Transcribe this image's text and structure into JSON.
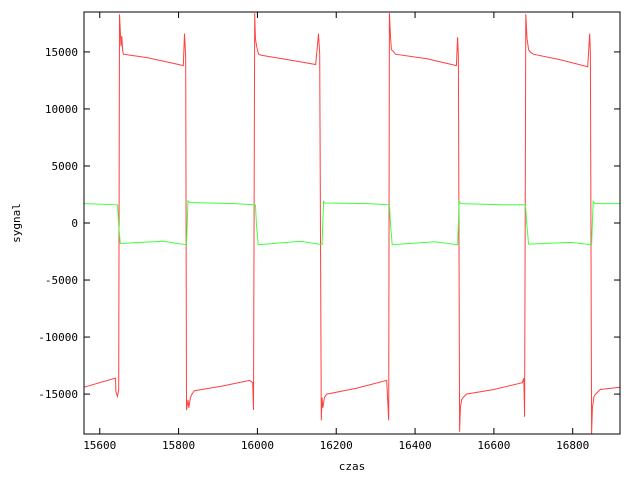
{
  "chart_data": {
    "type": "line",
    "title": "",
    "xlabel": "czas",
    "ylabel": "sygnal",
    "xlim": [
      15560,
      16920
    ],
    "ylim": [
      -18500,
      18500
    ],
    "x_ticks": [
      15600,
      15800,
      16000,
      16200,
      16400,
      16600,
      16800
    ],
    "y_ticks": [
      -15000,
      -10000,
      -5000,
      0,
      5000,
      10000,
      15000
    ],
    "x_tick_labels": [
      "15600",
      "15800",
      "16000",
      "16200",
      "16400",
      "16600",
      "16800"
    ],
    "y_tick_labels": [
      "-15000",
      "-10000",
      "-5000",
      "0",
      "5000",
      "10000",
      "15000"
    ],
    "grid": false,
    "legend": "none",
    "series": [
      {
        "color": "#ff4040",
        "x": [
          15560,
          15640,
          15641,
          15645,
          15648,
          15650,
          15654,
          15656,
          15658,
          15660,
          15720,
          15800,
          15812,
          15815,
          15818,
          15820,
          15824,
          15826,
          15830,
          15834,
          15840,
          15910,
          15980,
          15988,
          15990,
          15993,
          15995,
          15998,
          16000,
          16003,
          16010,
          16080,
          16148,
          16155,
          16158,
          16162,
          16164,
          16166,
          16170,
          16176,
          16250,
          16328,
          16333,
          16335,
          16338,
          16340,
          16346,
          16350,
          16430,
          16505,
          16508,
          16510,
          16513,
          16515,
          16518,
          16522,
          16530,
          16600,
          16672,
          16676,
          16678,
          16681,
          16684,
          16688,
          16692,
          16700,
          16770,
          16838,
          16843,
          16845,
          16848,
          16850,
          16854,
          16858,
          16870,
          16920
        ],
        "y": [
          -14400,
          -13600,
          -14800,
          -15200,
          -14600,
          18300,
          15500,
          16400,
          15200,
          14800,
          14500,
          13900,
          13800,
          16600,
          14500,
          -16400,
          -15500,
          -16200,
          -15300,
          -15000,
          -14700,
          -14300,
          -13800,
          -14000,
          -16400,
          18400,
          16200,
          15500,
          15200,
          14800,
          14700,
          14300,
          13900,
          16600,
          14800,
          -17300,
          -15300,
          -16200,
          -15300,
          -15000,
          -14500,
          -13800,
          -17300,
          18400,
          16200,
          15200,
          15000,
          14800,
          14400,
          13800,
          16300,
          14500,
          -18300,
          -16200,
          -15500,
          -15300,
          -15000,
          -14600,
          -14000,
          -13600,
          -17000,
          18300,
          16200,
          15200,
          15000,
          14800,
          14300,
          13700,
          16600,
          14800,
          -18500,
          -16200,
          -15200,
          -15000,
          -14600,
          -14400
        ]
      },
      {
        "color": "#40ff40",
        "x": [
          15560,
          15645,
          15648,
          15652,
          15760,
          15820,
          15824,
          15828,
          15940,
          15995,
          15998,
          16002,
          16110,
          16164,
          16168,
          16172,
          16280,
          16335,
          16338,
          16342,
          16450,
          16508,
          16512,
          16516,
          16620,
          16680,
          16684,
          16688,
          16795,
          16848,
          16852,
          16856,
          16920
        ],
        "y": [
          1700,
          1600,
          -200,
          -1800,
          -1600,
          -1900,
          1950,
          1800,
          1700,
          1600,
          -300,
          -1900,
          -1600,
          -1900,
          1900,
          1750,
          1700,
          1600,
          -200,
          -1900,
          -1650,
          -1900,
          1900,
          1700,
          1600,
          1600,
          -300,
          -1850,
          -1700,
          -1900,
          1900,
          1700,
          1700
        ]
      }
    ]
  }
}
